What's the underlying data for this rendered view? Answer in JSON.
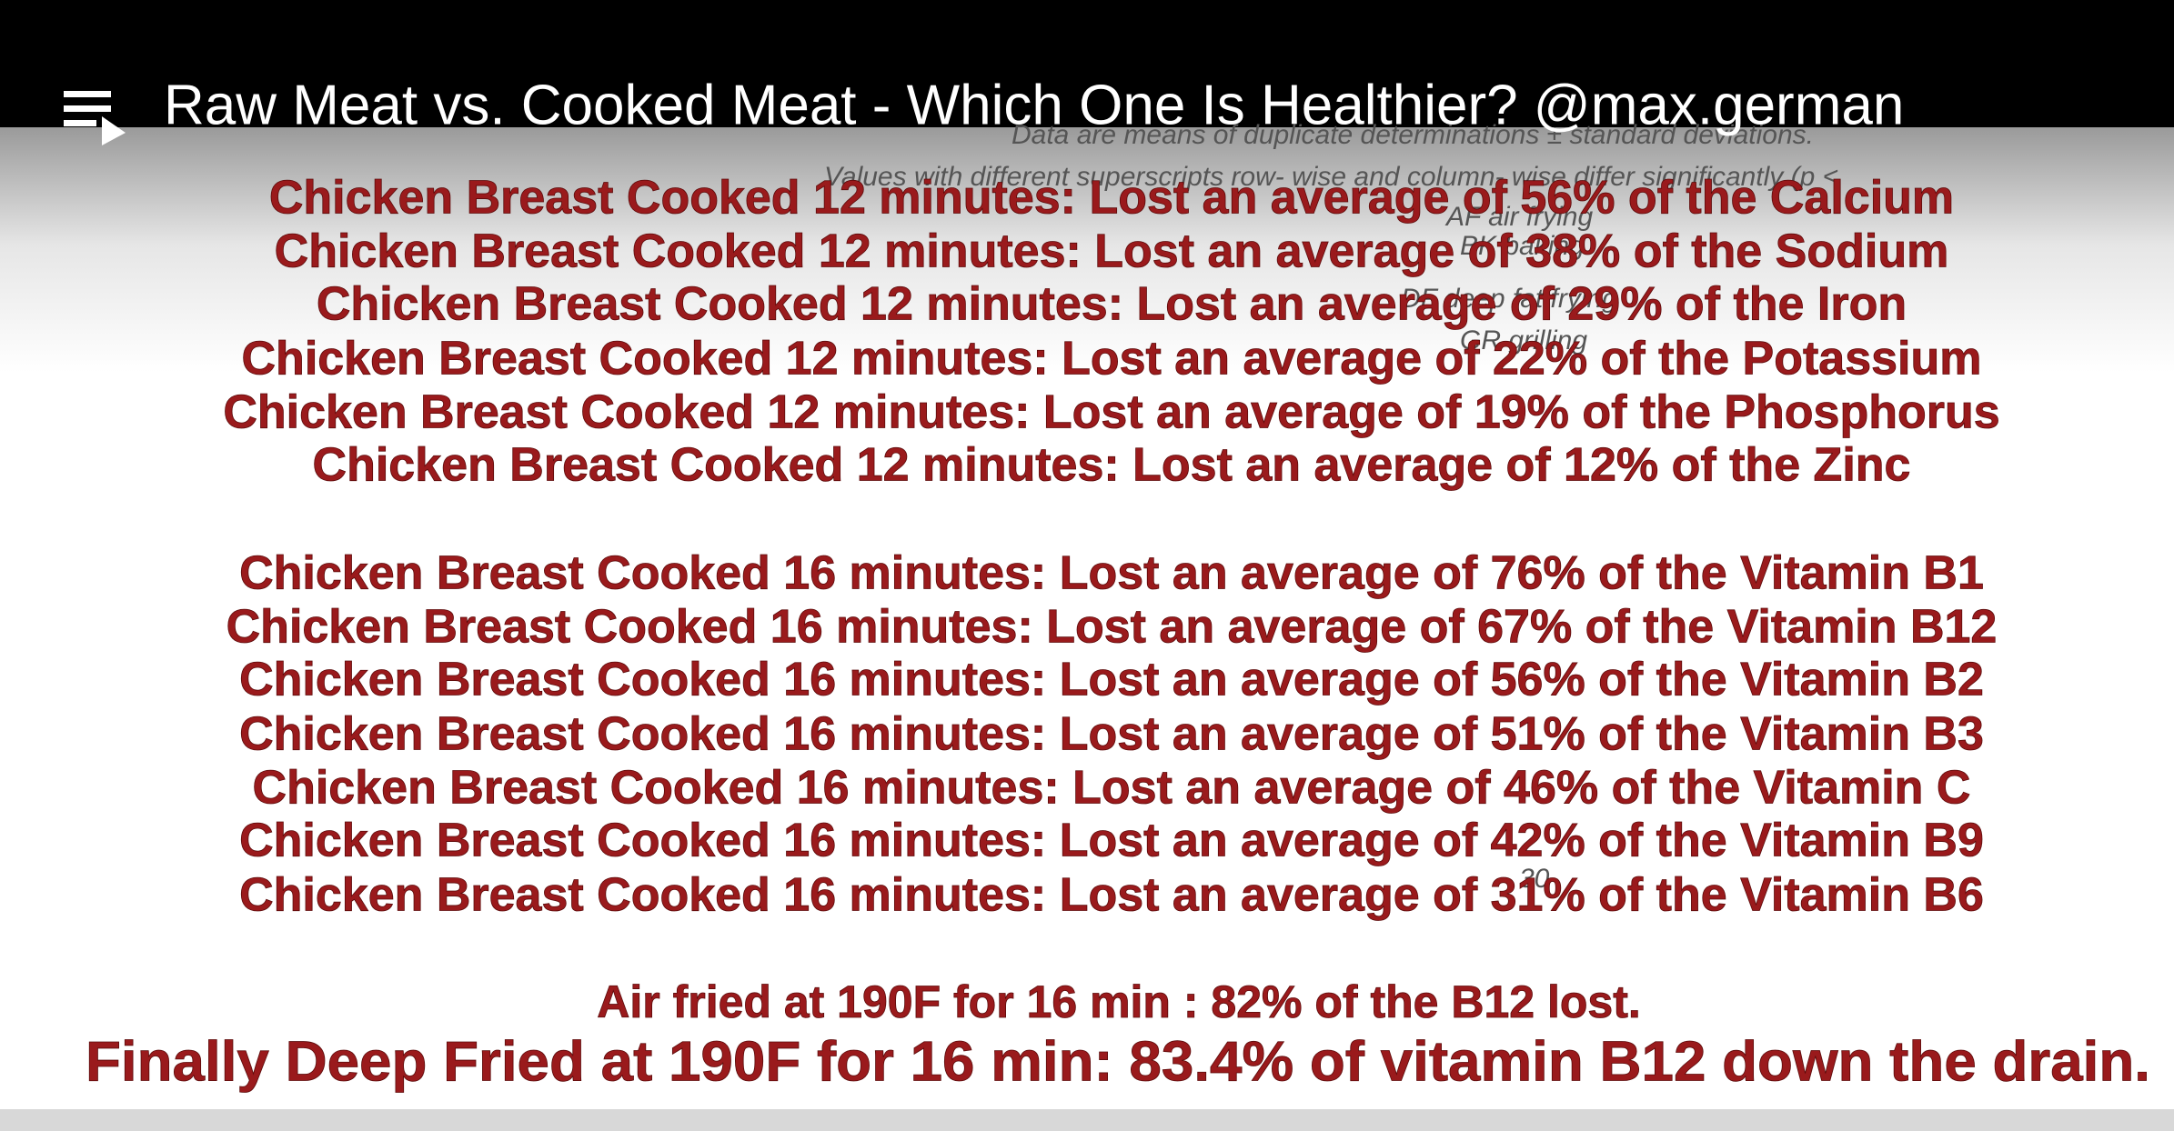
{
  "header": {
    "title": "Raw Meat vs. Cooked Meat - Which One Is Healthier? @max.german"
  },
  "background_notes": [
    "Data are means of duplicate determinations ± standard deviations.",
    "Values with different superscripts row- wise and column- wise differ significantly (p <",
    "AF air frying",
    "BK baking",
    "DF deep fat frying",
    "GR grilling",
    "30"
  ],
  "group_12_min": [
    "Chicken Breast Cooked 12 minutes: Lost an average of 56% of the Calcium",
    "Chicken Breast Cooked 12 minutes: Lost an average of 38% of the Sodium",
    "Chicken Breast Cooked 12 minutes: Lost an average of 29% of the Iron",
    "Chicken Breast Cooked 12 minutes: Lost an average of 22% of the Potassium",
    "Chicken Breast Cooked 12 minutes: Lost an average of 19% of the Phosphorus",
    "Chicken Breast Cooked 12 minutes: Lost an average of 12% of the Zinc"
  ],
  "group_16_min": [
    "Chicken Breast Cooked 16 minutes: Lost an average of 76% of the Vitamin B1",
    "Chicken Breast Cooked 16 minutes: Lost an average of 67% of the Vitamin B12",
    "Chicken Breast Cooked 16 minutes: Lost an average of 56% of the Vitamin B2",
    "Chicken Breast Cooked 16 minutes: Lost an average of 51% of the Vitamin B3",
    "Chicken Breast Cooked 16 minutes: Lost an average of 46% of the Vitamin C",
    "Chicken Breast Cooked 16 minutes: Lost an average of 42% of the Vitamin B9",
    "Chicken Breast Cooked 16 minutes: Lost an average of 31% of the Vitamin B6"
  ],
  "footer": {
    "air_fried": "Air fried at 190F for 16 min : 82% of the B12 lost.",
    "deep_fried": "Finally Deep Fried at 190F for 16 min:  83.4% of vitamin B12 down the drain."
  }
}
